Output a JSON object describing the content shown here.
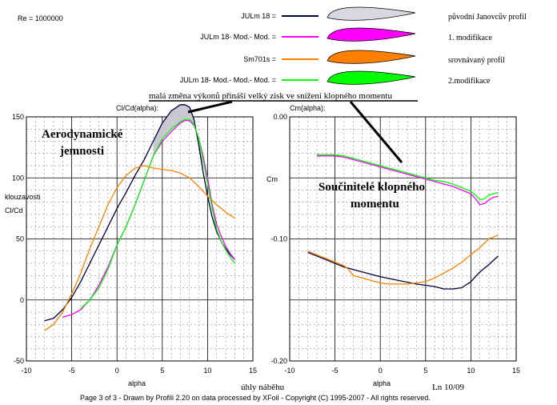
{
  "reynolds": "Re = 1000000",
  "legend": [
    {
      "label": "JULm 18 =",
      "color": "#000040",
      "airfoil_fill": "#d8d8e0",
      "description": "původní Janovcův profil"
    },
    {
      "label": "JULm 18- Mod.- Mod. =",
      "color": "#ff00ff",
      "airfoil_fill": "#ff00ff",
      "description": "1. modifikace"
    },
    {
      "label": "Sm701s =",
      "color": "#ff8000",
      "airfoil_fill": "#ff8000",
      "description": "srovnávaný profil"
    },
    {
      "label": "JULm 18- Mod.- Mod.- Mod. =",
      "color": "#00ff00",
      "airfoil_fill": "#00ff00",
      "description": "2.modifikace"
    }
  ],
  "annotations": {
    "top_note": "malá změna výkonů přináší velký zisk ve snížení klopného momentu",
    "left_title_line1": "Aerodynamické",
    "left_title_line2": "jemnosti",
    "right_title_line1": "Součinitelé klopného",
    "right_title_line2": "momentu",
    "glide_ratio_label": "klouzavosti",
    "angle_label": "úhly náběhu",
    "signature": "Ln 10/09"
  },
  "footer": "Page 3 of 3   -   Drawn by Profili 2.20 on data processed by  XFoil - Copyright (C) 1995-2007 - All rights reserved.",
  "chart_data": [
    {
      "type": "line",
      "title": "Cl/Cd(alpha):",
      "xlabel": "alpha",
      "ylabel": "Cl/Cd",
      "xlim": [
        -10,
        15
      ],
      "ylim": [
        -50,
        150
      ],
      "xticks": [
        "-10",
        "-5",
        "0",
        "5",
        "10",
        "15"
      ],
      "yticks": [
        "-50",
        "0",
        "50",
        "100",
        "150"
      ],
      "grid": true,
      "series": [
        {
          "name": "JULm 18",
          "color": "#000040",
          "width": 1.3,
          "x": [
            -8,
            -7,
            -6,
            -5,
            -4,
            -3,
            -2,
            -1,
            0,
            1,
            2,
            3,
            4,
            5,
            6,
            7,
            7.5,
            8,
            8.5,
            9,
            9.5,
            10,
            10.5,
            11,
            11.5,
            12,
            12.5,
            13
          ],
          "y": [
            -17,
            -15,
            -8,
            2,
            15,
            30,
            45,
            60,
            75,
            88,
            102,
            115,
            130,
            145,
            155,
            160,
            160,
            158,
            148,
            128,
            105,
            85,
            68,
            56,
            48,
            42,
            37,
            33
          ]
        },
        {
          "name": "JULm 18- Mod.- Mod.",
          "color": "#ff00ff",
          "width": 1.3,
          "x": [
            -6,
            -5,
            -4,
            -3,
            -2,
            -1,
            0,
            1,
            2,
            3,
            4,
            5,
            6,
            7,
            7.5,
            8,
            8.5,
            9,
            9.5,
            10,
            10.5,
            11,
            11.5,
            12,
            12.5,
            13
          ],
          "y": [
            -14,
            -12,
            -8,
            0,
            12,
            27,
            45,
            60,
            78,
            98,
            118,
            130,
            138,
            145,
            147,
            147,
            143,
            133,
            118,
            100,
            78,
            62,
            52,
            44,
            38,
            33
          ]
        },
        {
          "name": "Sm701s",
          "color": "#ff8000",
          "width": 1.3,
          "x": [
            -8,
            -7,
            -6,
            -5,
            -4,
            -3,
            -2,
            -1,
            0,
            1,
            2,
            3,
            4,
            5,
            6,
            7,
            8,
            9,
            10,
            11,
            12,
            13
          ],
          "y": [
            -25,
            -20,
            -10,
            5,
            22,
            42,
            60,
            78,
            92,
            102,
            108,
            110,
            108,
            107,
            106,
            104,
            100,
            93,
            85,
            78,
            72,
            67
          ]
        },
        {
          "name": "JULm 18- Mod.- Mod.- Mod.",
          "color": "#00ff00",
          "width": 1.3,
          "x": [
            -4,
            -3,
            -2,
            -1,
            0,
            1,
            2,
            3,
            4,
            5,
            6,
            7,
            7.5,
            8,
            8.5,
            9,
            9.5,
            10,
            10.5,
            11,
            11.5,
            12,
            12.5,
            13
          ],
          "y": [
            -7,
            0,
            10,
            25,
            45,
            60,
            78,
            98,
            118,
            132,
            140,
            146,
            148,
            148,
            144,
            133,
            115,
            95,
            75,
            58,
            48,
            41,
            35,
            30
          ]
        }
      ]
    },
    {
      "type": "line",
      "title": "Cm(alpha):",
      "xlabel": "alpha",
      "ylabel": "Cm",
      "xlim": [
        -10,
        15
      ],
      "ylim": [
        -0.2,
        0
      ],
      "xticks": [
        "-10",
        "-5",
        "0",
        "5",
        "10",
        "15"
      ],
      "yticks": [
        "0.00",
        "-0.10",
        "-0.20"
      ],
      "grid": true,
      "series": [
        {
          "name": "JULm 18",
          "color": "#000040",
          "width": 1.3,
          "x": [
            -8,
            -6,
            -4,
            -2,
            0,
            2,
            4,
            6,
            7,
            8,
            9,
            10,
            11,
            12,
            13
          ],
          "y": [
            -0.111,
            -0.117,
            -0.123,
            -0.127,
            -0.131,
            -0.134,
            -0.137,
            -0.139,
            -0.141,
            -0.141,
            -0.14,
            -0.135,
            -0.127,
            -0.121,
            -0.114
          ]
        },
        {
          "name": "JULm 18- Mod.- Mod.",
          "color": "#ff00ff",
          "width": 1.3,
          "x": [
            -7,
            -6,
            -5,
            -4,
            -3,
            -2,
            -1,
            0,
            1,
            2,
            3,
            4,
            5,
            6,
            7,
            8,
            9,
            10,
            10.5,
            11,
            11.5,
            12,
            12.5,
            13
          ],
          "y": [
            -0.032,
            -0.032,
            -0.032,
            -0.033,
            -0.035,
            -0.037,
            -0.039,
            -0.041,
            -0.043,
            -0.045,
            -0.047,
            -0.049,
            -0.051,
            -0.053,
            -0.055,
            -0.057,
            -0.06,
            -0.063,
            -0.067,
            -0.072,
            -0.071,
            -0.068,
            -0.066,
            -0.065
          ]
        },
        {
          "name": "Sm701s",
          "color": "#ff8000",
          "width": 1.3,
          "x": [
            -8,
            -7,
            -6,
            -5,
            -4,
            -3.5,
            -3,
            -2,
            -1,
            0,
            1,
            2,
            3,
            4,
            5,
            6,
            7,
            8,
            9,
            10,
            11,
            12,
            13
          ],
          "y": [
            -0.11,
            -0.113,
            -0.116,
            -0.119,
            -0.122,
            -0.125,
            -0.13,
            -0.132,
            -0.134,
            -0.136,
            -0.137,
            -0.137,
            -0.137,
            -0.136,
            -0.135,
            -0.132,
            -0.128,
            -0.124,
            -0.119,
            -0.113,
            -0.107,
            -0.1,
            -0.097
          ]
        },
        {
          "name": "JULm 18- Mod.- Mod.- Mod.",
          "color": "#00ff00",
          "width": 1.3,
          "x": [
            -7,
            -6,
            -5,
            -4,
            -3,
            -2,
            -1,
            0,
            1,
            2,
            3,
            4,
            5,
            6,
            7,
            8,
            9,
            10,
            10.5,
            11,
            11.5,
            12,
            12.5,
            13
          ],
          "y": [
            -0.031,
            -0.031,
            -0.031,
            -0.032,
            -0.034,
            -0.036,
            -0.038,
            -0.04,
            -0.042,
            -0.044,
            -0.046,
            -0.048,
            -0.05,
            -0.052,
            -0.053,
            -0.055,
            -0.058,
            -0.061,
            -0.064,
            -0.068,
            -0.067,
            -0.064,
            -0.063,
            -0.062
          ]
        }
      ]
    }
  ]
}
